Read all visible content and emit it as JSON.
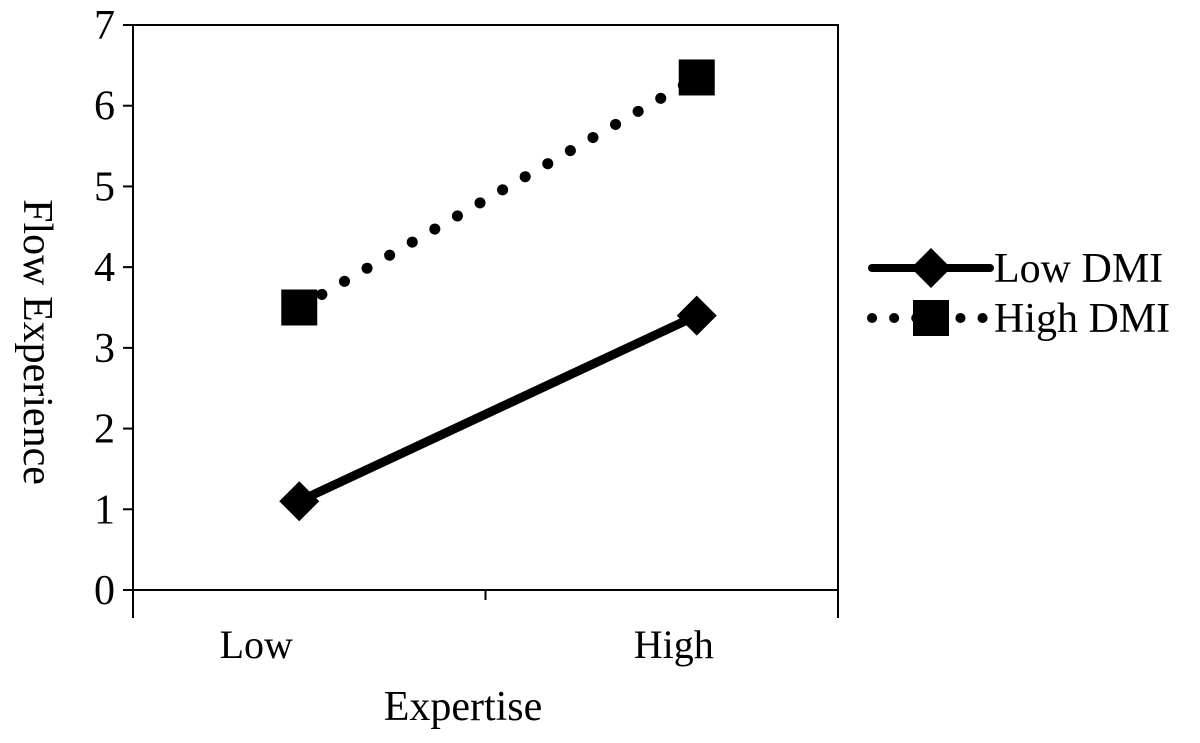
{
  "chart_data": {
    "type": "line",
    "title": "",
    "xlabel": "Expertise",
    "ylabel": "Flow Experience",
    "categories": [
      "Low",
      "High"
    ],
    "ylim": [
      0,
      7
    ],
    "yticks": [
      0,
      1,
      2,
      3,
      4,
      5,
      6,
      7
    ],
    "grid": false,
    "legend_position": "right",
    "series": [
      {
        "name": "Low DMI",
        "values": [
          1.1,
          3.4
        ],
        "line_style": "solid",
        "marker": "diamond",
        "color": "#000000"
      },
      {
        "name": "High DMI",
        "values": [
          3.5,
          6.35
        ],
        "line_style": "dotted",
        "marker": "square",
        "color": "#000000"
      }
    ]
  }
}
